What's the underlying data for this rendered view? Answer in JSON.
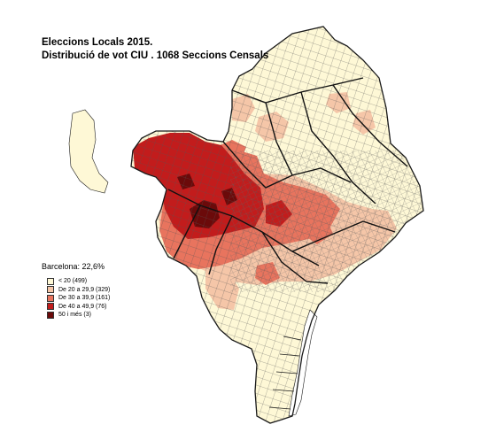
{
  "title": "Eleccions Locals 2015.",
  "subtitle": "Distribució de vot CIU . 1068 Seccions Censals",
  "summary": "Barcelona: 22,6%",
  "legend": [
    {
      "label": "< 20 (499)",
      "color": "#fef8d6"
    },
    {
      "label": "De 20 a 29,9 (329)",
      "color": "#f5c6a8"
    },
    {
      "label": "De 30 a 39,9 (161)",
      "color": "#e8745e"
    },
    {
      "label": "De 40 a 49,9 (76)",
      "color": "#c21c1c"
    },
    {
      "label": "50 i més (3)",
      "color": "#6b0a0a"
    }
  ],
  "colors": {
    "outline": "#1a1a1a",
    "port": "#ffffff"
  }
}
